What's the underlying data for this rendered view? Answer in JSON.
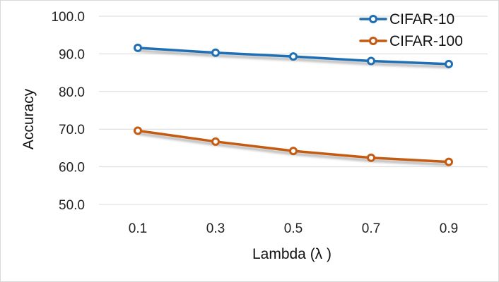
{
  "chart_data": {
    "type": "line",
    "title": "",
    "xlabel": "Lambda (λ )",
    "ylabel": "Accuracy",
    "categories": [
      "0.1",
      "0.3",
      "0.5",
      "0.7",
      "0.9"
    ],
    "ylim": [
      50.0,
      100.0
    ],
    "yticks": [
      "50.0",
      "60.0",
      "70.0",
      "80.0",
      "90.0",
      "100.0"
    ],
    "grid": true,
    "legend_position": "top-right",
    "series": [
      {
        "name": "CIFAR-10",
        "color": "#1f6fb5",
        "values": [
          91.6,
          90.3,
          89.3,
          88.1,
          87.3
        ]
      },
      {
        "name": "CIFAR-100",
        "color": "#c55a11",
        "values": [
          69.6,
          66.7,
          64.2,
          62.4,
          61.3
        ]
      }
    ]
  }
}
